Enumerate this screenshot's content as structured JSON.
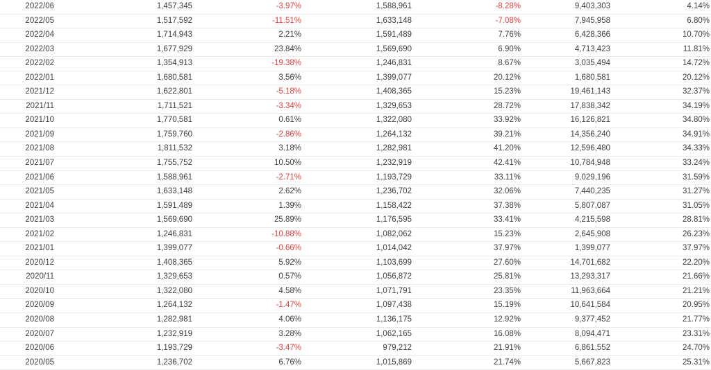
{
  "colors": {
    "negative_text": "#e0443e",
    "body_text": "#404040",
    "row_border": "#ebebeb",
    "background": "#ffffff"
  },
  "table": {
    "column_names": [
      "month-cell",
      "monthly-value-cell",
      "mom-change-pct-cell",
      "prior-year-month-value-cell",
      "yoy-change-pct-cell",
      "cumulative-value-cell",
      "cumulative-yoy-pct-cell"
    ],
    "rows": [
      [
        "2022/06",
        "1,457,345",
        "-3.97%",
        "1,588,961",
        "-8.28%",
        "9,403,303",
        "4.14%"
      ],
      [
        "2022/05",
        "1,517,592",
        "-11.51%",
        "1,633,148",
        "-7.08%",
        "7,945,958",
        "6.80%"
      ],
      [
        "2022/04",
        "1,714,943",
        "2.21%",
        "1,591,489",
        "7.76%",
        "6,428,366",
        "10.70%"
      ],
      [
        "2022/03",
        "1,677,929",
        "23.84%",
        "1,569,690",
        "6.90%",
        "4,713,423",
        "11.81%"
      ],
      [
        "2022/02",
        "1,354,913",
        "-19.38%",
        "1,246,831",
        "8.67%",
        "3,035,494",
        "14.72%"
      ],
      [
        "2022/01",
        "1,680,581",
        "3.56%",
        "1,399,077",
        "20.12%",
        "1,680,581",
        "20.12%"
      ],
      [
        "2021/12",
        "1,622,801",
        "-5.18%",
        "1,408,365",
        "15.23%",
        "19,461,143",
        "32.37%"
      ],
      [
        "2021/11",
        "1,711,521",
        "-3.34%",
        "1,329,653",
        "28.72%",
        "17,838,342",
        "34.19%"
      ],
      [
        "2021/10",
        "1,770,581",
        "0.61%",
        "1,322,080",
        "33.92%",
        "16,126,821",
        "34.80%"
      ],
      [
        "2021/09",
        "1,759,760",
        "-2.86%",
        "1,264,132",
        "39.21%",
        "14,356,240",
        "34.91%"
      ],
      [
        "2021/08",
        "1,811,532",
        "3.18%",
        "1,282,981",
        "41.20%",
        "12,596,480",
        "34.33%"
      ],
      [
        "2021/07",
        "1,755,752",
        "10.50%",
        "1,232,919",
        "42.41%",
        "10,784,948",
        "33.24%"
      ],
      [
        "2021/06",
        "1,588,961",
        "-2.71%",
        "1,193,729",
        "33.11%",
        "9,029,196",
        "31.59%"
      ],
      [
        "2021/05",
        "1,633,148",
        "2.62%",
        "1,236,702",
        "32.06%",
        "7,440,235",
        "31.27%"
      ],
      [
        "2021/04",
        "1,591,489",
        "1.39%",
        "1,158,422",
        "37.38%",
        "5,807,087",
        "31.05%"
      ],
      [
        "2021/03",
        "1,569,690",
        "25.89%",
        "1,176,595",
        "33.41%",
        "4,215,598",
        "28.81%"
      ],
      [
        "2021/02",
        "1,246,831",
        "-10.88%",
        "1,082,062",
        "15.23%",
        "2,645,908",
        "26.23%"
      ],
      [
        "2021/01",
        "1,399,077",
        "-0.66%",
        "1,014,042",
        "37.97%",
        "1,399,077",
        "37.97%"
      ],
      [
        "2020/12",
        "1,408,365",
        "5.92%",
        "1,103,699",
        "27.60%",
        "14,701,682",
        "22.20%"
      ],
      [
        "2020/11",
        "1,329,653",
        "0.57%",
        "1,056,872",
        "25.81%",
        "13,293,317",
        "21.66%"
      ],
      [
        "2020/10",
        "1,322,080",
        "4.58%",
        "1,071,791",
        "23.35%",
        "11,963,664",
        "21.21%"
      ],
      [
        "2020/09",
        "1,264,132",
        "-1.47%",
        "1,097,438",
        "15.19%",
        "10,641,584",
        "20.95%"
      ],
      [
        "2020/08",
        "1,282,981",
        "4.06%",
        "1,136,175",
        "12.92%",
        "9,377,452",
        "21.77%"
      ],
      [
        "2020/07",
        "1,232,919",
        "3.28%",
        "1,062,165",
        "16.08%",
        "8,094,471",
        "23.31%"
      ],
      [
        "2020/06",
        "1,193,729",
        "-3.47%",
        "979,212",
        "21.91%",
        "6,861,552",
        "24.70%"
      ],
      [
        "2020/05",
        "1,236,702",
        "6.76%",
        "1,015,869",
        "21.74%",
        "5,667,823",
        "25.31%"
      ]
    ]
  }
}
